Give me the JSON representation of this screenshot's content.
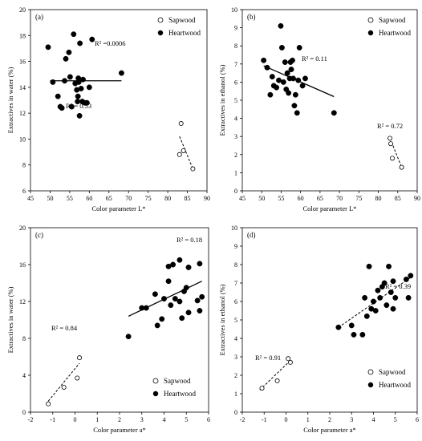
{
  "legend_labels": {
    "sapwood": "Sapwood",
    "heartwood": "Heartwood"
  },
  "chart_data": [
    {
      "type": "scatter",
      "panel_label": "(a)",
      "xlabel": "Color parameter L*",
      "ylabel": "Extractives in water (%)",
      "xlim": [
        45,
        90
      ],
      "ylim": [
        6,
        20
      ],
      "x_ticks": [
        45,
        50,
        55,
        60,
        65,
        70,
        75,
        80,
        85,
        90
      ],
      "y_ticks": [
        6,
        8,
        10,
        12,
        14,
        16,
        18,
        20
      ],
      "legend_position": "top-right",
      "series": [
        {
          "name": "Heartwood",
          "marker": "filled",
          "points": [
            [
              49.5,
              17.1
            ],
            [
              50.7,
              14.4
            ],
            [
              52.0,
              13.3
            ],
            [
              52.6,
              12.5
            ],
            [
              53.0,
              12.4
            ],
            [
              53.7,
              14.5
            ],
            [
              54.0,
              16.2
            ],
            [
              54.8,
              16.7
            ],
            [
              55.1,
              14.8
            ],
            [
              55.5,
              12.5
            ],
            [
              56.0,
              18.1
            ],
            [
              56.4,
              14.3
            ],
            [
              56.8,
              13.8
            ],
            [
              57.0,
              12.9
            ],
            [
              57.1,
              13.3
            ],
            [
              57.2,
              14.7
            ],
            [
              57.3,
              14.4
            ],
            [
              57.5,
              11.8
            ],
            [
              57.6,
              17.4
            ],
            [
              57.9,
              13.9
            ],
            [
              58.2,
              12.9
            ],
            [
              58.4,
              14.6
            ],
            [
              58.8,
              12.8
            ],
            [
              59.4,
              12.8
            ],
            [
              60.0,
              14.0
            ],
            [
              60.7,
              17.7
            ],
            [
              68.2,
              15.1
            ]
          ]
        },
        {
          "name": "Sapwood",
          "marker": "open",
          "points": [
            [
              83.0,
              8.8
            ],
            [
              83.4,
              11.2
            ],
            [
              84.0,
              9.1
            ],
            [
              86.4,
              7.7
            ]
          ]
        }
      ],
      "trendlines": [
        {
          "series": "Heartwood",
          "style": "solid",
          "x": [
            50,
            68.2
          ],
          "y": [
            14.5,
            14.5
          ],
          "r2": "R² =0.0006"
        },
        {
          "series": "Sapwood",
          "style": "dashed",
          "x": [
            83.0,
            86.4
          ],
          "y": [
            10.2,
            7.7
          ],
          "r2": "R² = 0.53"
        }
      ]
    },
    {
      "type": "scatter",
      "panel_label": "(b)",
      "xlabel": "Color parameter L*",
      "ylabel": "Extractives in ethanol (%)",
      "xlim": [
        45,
        90
      ],
      "ylim": [
        0,
        10
      ],
      "x_ticks": [
        45,
        50,
        55,
        60,
        65,
        70,
        75,
        80,
        85,
        90
      ],
      "y_ticks": [
        0,
        1,
        2,
        3,
        4,
        5,
        6,
        7,
        8,
        9,
        10
      ],
      "legend_position": "top-right",
      "series": [
        {
          "name": "Heartwood",
          "marker": "filled",
          "points": [
            [
              50.5,
              7.2
            ],
            [
              51.4,
              6.8
            ],
            [
              52.2,
              5.3
            ],
            [
              52.7,
              6.3
            ],
            [
              53.1,
              5.8
            ],
            [
              53.8,
              5.7
            ],
            [
              54.4,
              6.1
            ],
            [
              54.9,
              9.1
            ],
            [
              55.2,
              7.9
            ],
            [
              55.6,
              6.0
            ],
            [
              56.0,
              7.1
            ],
            [
              56.3,
              5.6
            ],
            [
              56.6,
              6.5
            ],
            [
              56.9,
              5.4
            ],
            [
              57.2,
              6.2
            ],
            [
              57.4,
              7.1
            ],
            [
              57.6,
              6.7
            ],
            [
              57.9,
              7.2
            ],
            [
              58.1,
              6.2
            ],
            [
              58.4,
              4.7
            ],
            [
              58.7,
              5.3
            ],
            [
              59.1,
              4.3
            ],
            [
              59.4,
              6.1
            ],
            [
              59.7,
              7.9
            ],
            [
              60.5,
              5.8
            ],
            [
              61.2,
              6.2
            ],
            [
              68.6,
              4.3
            ]
          ]
        },
        {
          "name": "Sapwood",
          "marker": "open",
          "points": [
            [
              83.0,
              2.9
            ],
            [
              83.2,
              2.6
            ],
            [
              83.6,
              1.8
            ],
            [
              86.0,
              1.3
            ]
          ]
        }
      ],
      "trendlines": [
        {
          "series": "Heartwood",
          "style": "solid",
          "x": [
            50.5,
            68.6
          ],
          "y": [
            6.9,
            5.2
          ],
          "r2": "R² = 0.11"
        },
        {
          "series": "Sapwood",
          "style": "dashed",
          "x": [
            83.0,
            86.0
          ],
          "y": [
            2.9,
            1.3
          ],
          "r2": "R² = 0.72"
        }
      ]
    },
    {
      "type": "scatter",
      "panel_label": "(c)",
      "xlabel": "Color parameter a*",
      "ylabel": "Extractives in water (%)",
      "xlim": [
        -2,
        6
      ],
      "ylim": [
        0,
        20
      ],
      "x_ticks": [
        -2,
        -1,
        0,
        1,
        2,
        3,
        4,
        5,
        6
      ],
      "y_ticks": [
        0,
        4,
        8,
        12,
        16,
        20
      ],
      "legend_position": "bottom-right",
      "series": [
        {
          "name": "Heartwood",
          "marker": "filled",
          "points": [
            [
              2.4,
              8.2
            ],
            [
              3.0,
              11.3
            ],
            [
              3.2,
              11.3
            ],
            [
              3.6,
              12.8
            ],
            [
              3.7,
              9.4
            ],
            [
              3.9,
              10.1
            ],
            [
              4.0,
              12.3
            ],
            [
              4.2,
              14.2
            ],
            [
              4.2,
              15.8
            ],
            [
              4.3,
              11.6
            ],
            [
              4.4,
              16.0
            ],
            [
              4.5,
              12.3
            ],
            [
              4.7,
              12.0
            ],
            [
              4.7,
              16.5
            ],
            [
              4.8,
              10.2
            ],
            [
              4.9,
              13.1
            ],
            [
              5.0,
              13.5
            ],
            [
              5.1,
              15.7
            ],
            [
              5.1,
              10.8
            ],
            [
              5.5,
              12.1
            ],
            [
              5.6,
              16.1
            ],
            [
              5.6,
              11.0
            ],
            [
              5.7,
              12.5
            ]
          ]
        },
        {
          "name": "Sapwood",
          "marker": "open",
          "points": [
            [
              -1.2,
              0.9
            ],
            [
              -0.5,
              2.7
            ],
            [
              0.1,
              3.7
            ],
            [
              0.2,
              5.9
            ]
          ]
        }
      ],
      "trendlines": [
        {
          "series": "Heartwood",
          "style": "solid",
          "x": [
            2.4,
            5.7
          ],
          "y": [
            10.4,
            14.2
          ],
          "r2": "R² = 0.18"
        },
        {
          "series": "Sapwood",
          "style": "dashed",
          "x": [
            -1.2,
            0.2
          ],
          "y": [
            1.2,
            5.3
          ],
          "r2": "R² = 0.84"
        }
      ]
    },
    {
      "type": "scatter",
      "panel_label": "(d)",
      "xlabel": "Color parameter a*",
      "ylabel": "Extractives in ethanol (%)",
      "xlim": [
        -2,
        6
      ],
      "ylim": [
        0,
        10
      ],
      "x_ticks": [
        -2,
        -1,
        0,
        1,
        2,
        3,
        4,
        5,
        6
      ],
      "y_ticks": [
        0,
        1,
        2,
        3,
        4,
        5,
        6,
        7,
        8,
        9,
        10
      ],
      "legend_position": "bottom-right",
      "series": [
        {
          "name": "Heartwood",
          "marker": "filled",
          "points": [
            [
              2.4,
              4.6
            ],
            [
              3.0,
              4.7
            ],
            [
              3.1,
              4.2
            ],
            [
              3.5,
              4.2
            ],
            [
              3.6,
              6.2
            ],
            [
              3.7,
              5.2
            ],
            [
              3.8,
              7.9
            ],
            [
              3.9,
              5.6
            ],
            [
              4.0,
              6.0
            ],
            [
              4.1,
              5.5
            ],
            [
              4.2,
              6.6
            ],
            [
              4.3,
              6.2
            ],
            [
              4.4,
              6.8
            ],
            [
              4.5,
              7.0
            ],
            [
              4.6,
              5.8
            ],
            [
              4.7,
              7.9
            ],
            [
              4.8,
              6.5
            ],
            [
              4.9,
              7.1
            ],
            [
              4.9,
              5.6
            ],
            [
              5.0,
              6.2
            ],
            [
              5.5,
              7.2
            ],
            [
              5.6,
              6.2
            ],
            [
              5.7,
              7.4
            ]
          ]
        },
        {
          "name": "Sapwood",
          "marker": "open",
          "points": [
            [
              -1.1,
              1.3
            ],
            [
              -0.4,
              1.7
            ],
            [
              0.1,
              2.9
            ],
            [
              0.2,
              2.7
            ]
          ]
        }
      ],
      "trendlines": [
        {
          "series": "Heartwood",
          "style": "dashed",
          "x": [
            2.4,
            5.7
          ],
          "y": [
            4.6,
            7.3
          ],
          "r2": "R² = 0.39"
        },
        {
          "series": "Sapwood",
          "style": "dashed",
          "x": [
            -1.2,
            0.2
          ],
          "y": [
            1.2,
            2.8
          ],
          "r2": "R² = 0.91"
        }
      ]
    }
  ]
}
